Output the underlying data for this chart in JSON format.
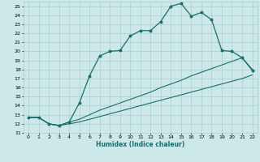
{
  "xlabel": "Humidex (Indice chaleur)",
  "background_color": "#cce8e8",
  "grid_color": "#aacece",
  "line_color": "#1a6e6a",
  "xlim": [
    -0.5,
    22.5
  ],
  "ylim": [
    11,
    25.5
  ],
  "xticks": [
    0,
    1,
    2,
    3,
    4,
    5,
    6,
    7,
    8,
    9,
    10,
    11,
    12,
    13,
    14,
    15,
    16,
    17,
    18,
    19,
    20,
    21,
    22
  ],
  "yticks": [
    11,
    12,
    13,
    14,
    15,
    16,
    17,
    18,
    19,
    20,
    21,
    22,
    23,
    24,
    25
  ],
  "line1_x": [
    0,
    1,
    2,
    3,
    4,
    5,
    6,
    7,
    8,
    9,
    10,
    11,
    12,
    13,
    14,
    15,
    16,
    17,
    18,
    19,
    20,
    21,
    22
  ],
  "line1_y": [
    12.7,
    12.7,
    12.0,
    11.8,
    12.2,
    14.3,
    17.3,
    19.5,
    20.0,
    20.1,
    21.7,
    22.3,
    22.3,
    23.3,
    25.0,
    25.3,
    23.9,
    24.3,
    23.5,
    20.1,
    20.0,
    19.3,
    17.9
  ],
  "line2_x": [
    0,
    1,
    2,
    3,
    4,
    5,
    6,
    7,
    8,
    9,
    10,
    11,
    12,
    13,
    14,
    15,
    16,
    17,
    18,
    19,
    20,
    21,
    22
  ],
  "line2_y": [
    12.7,
    12.7,
    12.0,
    11.8,
    12.2,
    12.5,
    13.0,
    13.5,
    13.9,
    14.3,
    14.7,
    15.1,
    15.5,
    16.0,
    16.4,
    16.8,
    17.3,
    17.7,
    18.1,
    18.5,
    18.9,
    19.3,
    18.0
  ],
  "line3_x": [
    0,
    1,
    2,
    3,
    4,
    5,
    6,
    7,
    8,
    9,
    10,
    11,
    12,
    13,
    14,
    15,
    16,
    17,
    18,
    19,
    20,
    21,
    22
  ],
  "line3_y": [
    12.7,
    12.7,
    12.0,
    11.8,
    12.0,
    12.2,
    12.5,
    12.8,
    13.1,
    13.4,
    13.7,
    14.0,
    14.3,
    14.6,
    14.9,
    15.2,
    15.5,
    15.8,
    16.1,
    16.4,
    16.7,
    17.0,
    17.4
  ]
}
